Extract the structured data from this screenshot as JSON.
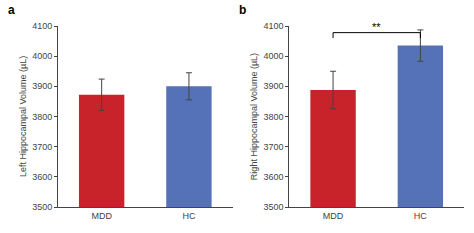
{
  "chart_data": [
    {
      "type": "bar",
      "title": "a",
      "categories": [
        "MDD",
        "HC"
      ],
      "values": [
        3872,
        3900
      ],
      "errors": [
        52,
        45
      ],
      "colors": [
        "#c8222a",
        "#5572b8"
      ],
      "ylabel": "Left Hippocampal Volume (µL)",
      "ylim": [
        3500,
        4100
      ],
      "yticks": [
        3500,
        3600,
        3700,
        3800,
        3900,
        4000,
        4100
      ],
      "grid": false
    },
    {
      "type": "bar",
      "title": "b",
      "categories": [
        "MDD",
        "HC"
      ],
      "values": [
        3888,
        4035
      ],
      "errors": [
        62,
        52
      ],
      "colors": [
        "#c8222a",
        "#5572b8"
      ],
      "ylabel": "Right Hippocampal Volume (µL)",
      "ylim": [
        3500,
        4100
      ],
      "yticks": [
        3500,
        3600,
        3700,
        3800,
        3900,
        4000,
        4100
      ],
      "grid": false,
      "annotations": [
        {
          "text": "**",
          "from": "MDD",
          "to": "HC",
          "y": 4078
        }
      ]
    }
  ]
}
